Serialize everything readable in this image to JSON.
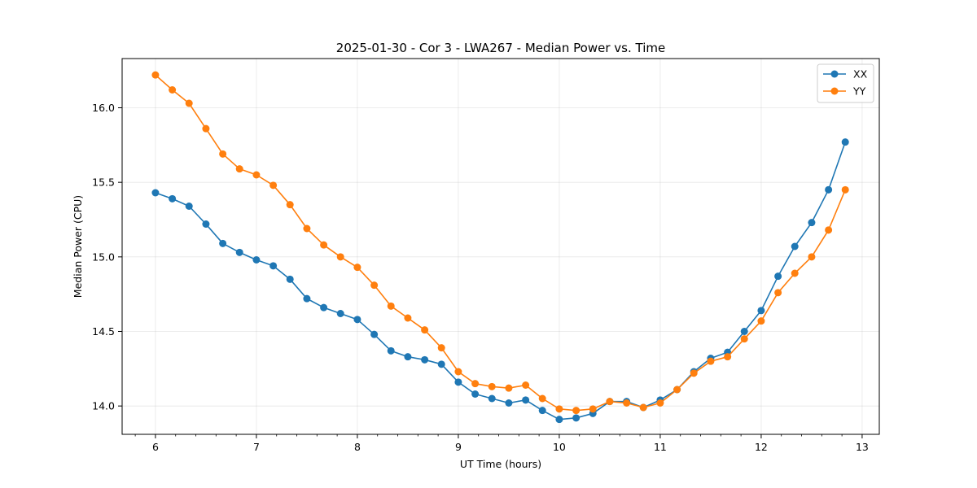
{
  "chart_data": {
    "type": "line",
    "title": "2025-01-30 - Cor 3 - LWA267 - Median Power vs. Time",
    "xlabel": "UT Time (hours)",
    "ylabel": "Median Power (CPU)",
    "xlim": [
      5.67,
      13.17
    ],
    "ylim": [
      13.81,
      16.33
    ],
    "xticks": [
      6,
      7,
      8,
      9,
      10,
      11,
      12,
      13
    ],
    "yticks": [
      14.0,
      14.5,
      15.0,
      15.5,
      16.0
    ],
    "ytick_labels": [
      "14.0",
      "14.5",
      "15.0",
      "15.5",
      "16.0"
    ],
    "grid": true,
    "legend_position": "top-right",
    "x": [
      6.0,
      6.167,
      6.333,
      6.5,
      6.667,
      6.833,
      7.0,
      7.167,
      7.333,
      7.5,
      7.667,
      7.833,
      8.0,
      8.167,
      8.333,
      8.5,
      8.667,
      8.833,
      9.0,
      9.167,
      9.333,
      9.5,
      9.667,
      9.833,
      10.0,
      10.167,
      10.333,
      10.5,
      10.667,
      10.833,
      11.0,
      11.167,
      11.333,
      11.5,
      11.667,
      11.833,
      12.0,
      12.167,
      12.333,
      12.5,
      12.667,
      12.833
    ],
    "series": [
      {
        "name": "XX",
        "color": "#1f77b4",
        "values": [
          15.43,
          15.39,
          15.34,
          15.22,
          15.09,
          15.03,
          14.98,
          14.94,
          14.85,
          14.72,
          14.66,
          14.62,
          14.58,
          14.48,
          14.37,
          14.33,
          14.31,
          14.28,
          14.16,
          14.08,
          14.05,
          14.02,
          14.04,
          13.97,
          13.91,
          13.92,
          13.95,
          14.03,
          14.03,
          13.99,
          14.04,
          14.11,
          14.23,
          14.32,
          14.36,
          14.5,
          14.64,
          14.87,
          15.07,
          15.23,
          15.45,
          15.77
        ]
      },
      {
        "name": "YY",
        "color": "#ff7f0e",
        "values": [
          16.22,
          16.12,
          16.03,
          15.86,
          15.69,
          15.59,
          15.55,
          15.48,
          15.35,
          15.19,
          15.08,
          15.0,
          14.93,
          14.81,
          14.67,
          14.59,
          14.51,
          14.39,
          14.23,
          14.15,
          14.13,
          14.12,
          14.14,
          14.05,
          13.98,
          13.97,
          13.98,
          14.03,
          14.02,
          13.99,
          14.02,
          14.11,
          14.22,
          14.3,
          14.33,
          14.45,
          14.57,
          14.76,
          14.89,
          15.0,
          15.18,
          15.45
        ]
      }
    ]
  }
}
